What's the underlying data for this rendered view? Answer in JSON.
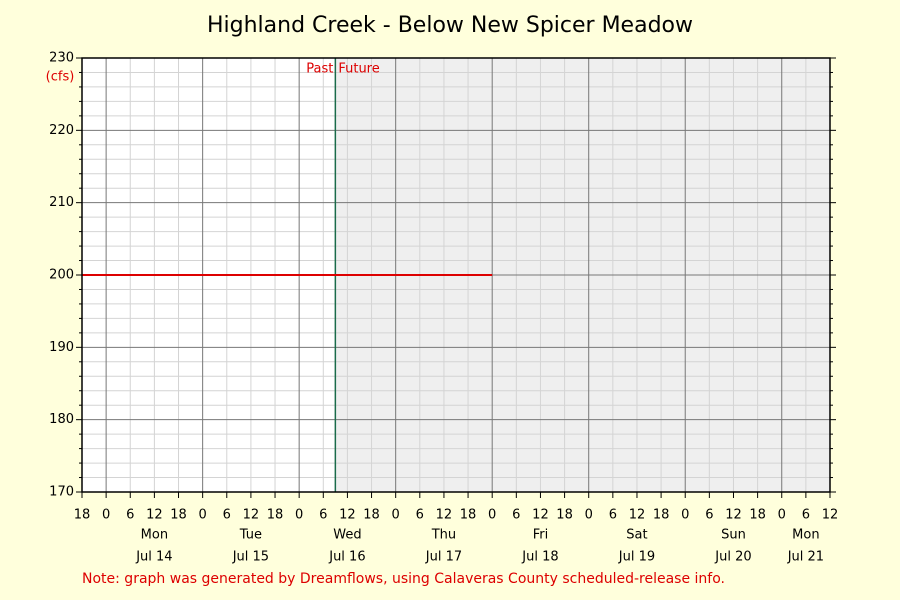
{
  "chart_data": {
    "type": "line",
    "title": "Highland Creek - Below New Spicer Meadow",
    "y_label": "(cfs)",
    "past_label": "Past",
    "future_label": "Future",
    "now": 57,
    "note": "Note: graph was generated by Dreamflows, using Calaveras County scheduled-release info.",
    "xlim": [
      -6,
      180
    ],
    "xticks": [
      {
        "value": -6,
        "label": "18"
      },
      0,
      6,
      12,
      18,
      {
        "value": 24,
        "label": "0"
      },
      {
        "value": 30,
        "label": "6"
      },
      {
        "value": 36,
        "label": "12"
      },
      {
        "value": 42,
        "label": "18"
      },
      {
        "value": 48,
        "label": "0"
      },
      {
        "value": 54,
        "label": "6"
      },
      {
        "value": 60,
        "label": "12"
      },
      {
        "value": 66,
        "label": "18"
      },
      {
        "value": 72,
        "label": "0"
      },
      {
        "value": 78,
        "label": "6"
      },
      {
        "value": 84,
        "label": "12"
      },
      {
        "value": 90,
        "label": "18"
      },
      {
        "value": 96,
        "label": "0"
      },
      {
        "value": 102,
        "label": "6"
      },
      {
        "value": 108,
        "label": "12"
      },
      {
        "value": 114,
        "label": "18"
      },
      {
        "value": 120,
        "label": "0"
      },
      {
        "value": 126,
        "label": "6"
      },
      {
        "value": 132,
        "label": "12"
      },
      {
        "value": 138,
        "label": "18"
      },
      {
        "value": 144,
        "label": "0"
      },
      {
        "value": 150,
        "label": "6"
      },
      {
        "value": 156,
        "label": "12"
      },
      {
        "value": 162,
        "label": "18"
      },
      {
        "value": 168,
        "label": "0"
      },
      {
        "value": 174,
        "label": "6"
      },
      {
        "value": 180,
        "label": "12"
      }
    ],
    "day_labels": [
      {
        "value": 12,
        "weekday": "Mon",
        "date": "Jul 14"
      },
      {
        "value": 36,
        "weekday": "Tue",
        "date": "Jul 15"
      },
      {
        "value": 60,
        "weekday": "Wed",
        "date": "Jul 16"
      },
      {
        "value": 84,
        "weekday": "Thu",
        "date": "Jul 17"
      },
      {
        "value": 108,
        "weekday": "Fri",
        "date": "Jul 18"
      },
      {
        "value": 132,
        "weekday": "Sat",
        "date": "Jul 19"
      },
      {
        "value": 156,
        "weekday": "Sun",
        "date": "Jul 20"
      },
      {
        "value": 174,
        "weekday": "Mon",
        "date": "Jul 21"
      }
    ],
    "ylim": [
      170,
      230
    ],
    "yticks": [
      170,
      180,
      190,
      200,
      210,
      220,
      230
    ],
    "y_minor_ticks": [
      172,
      174,
      176,
      178,
      182,
      184,
      186,
      188,
      192,
      194,
      196,
      198,
      202,
      204,
      206,
      208,
      212,
      214,
      216,
      218,
      222,
      224,
      226,
      228
    ],
    "grid": true,
    "future_shade": "#efefef",
    "now_color": "#1a6b4a",
    "series": [
      {
        "color": "#dd0000",
        "x": [
          -6,
          96
        ],
        "values": [
          200,
          200
        ]
      }
    ]
  }
}
